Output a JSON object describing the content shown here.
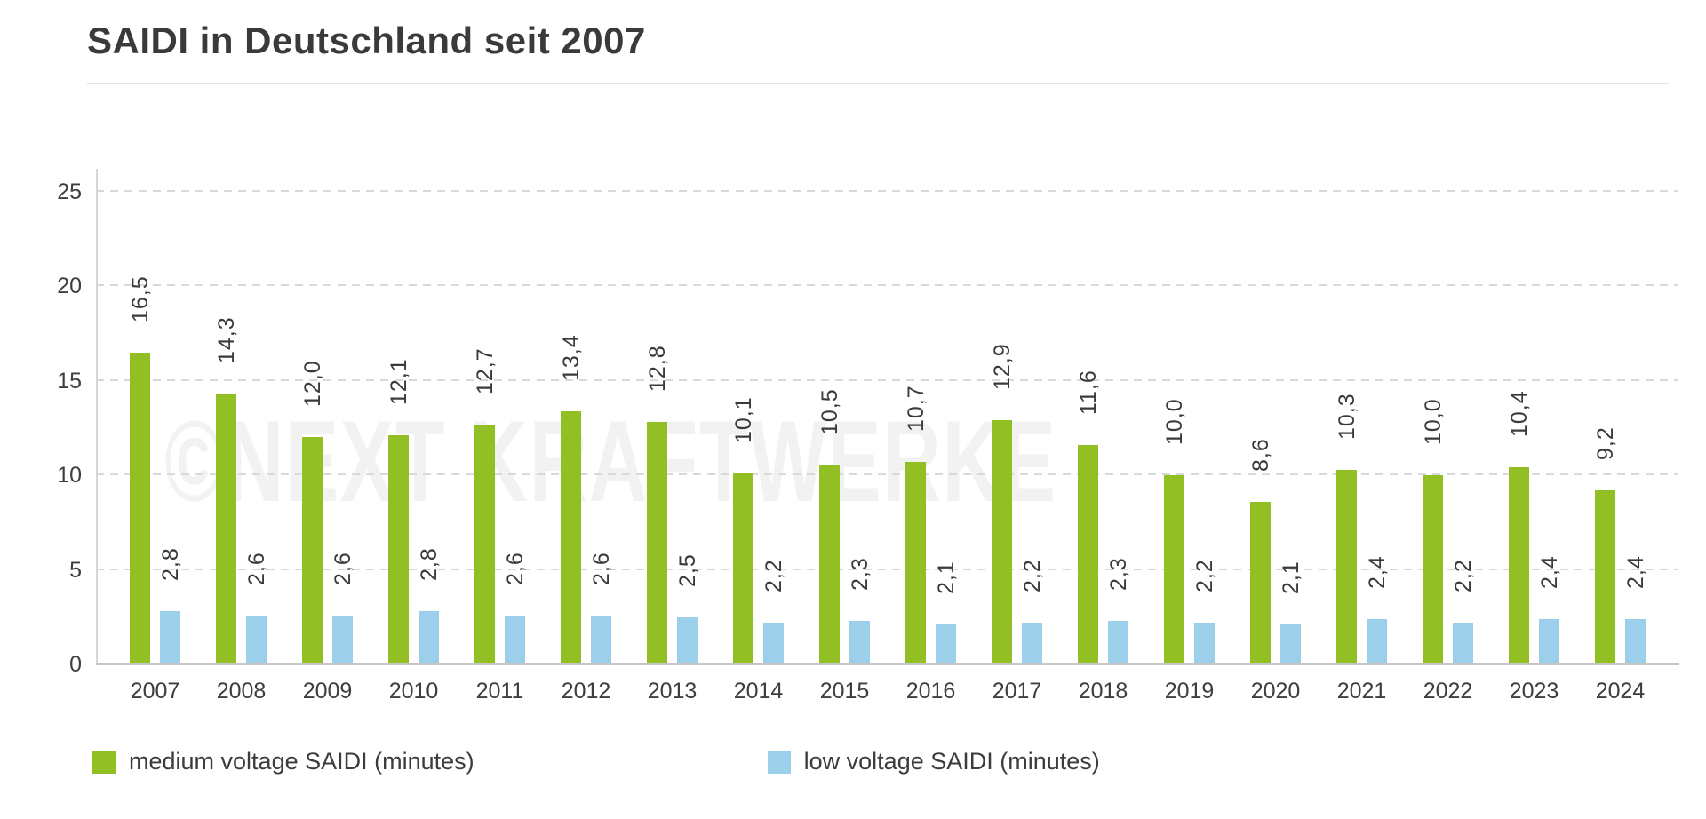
{
  "title": "SAIDI in Deutschland seit 2007",
  "watermark": "©NEXT KRAFTWERKE",
  "colors": {
    "medium_voltage_green": "#92bf23",
    "low_voltage_blue": "#9bcfea",
    "gridline": "#d9d9d9",
    "axis_line": "#c6c6c6",
    "text": "#3a3a3a",
    "watermark": "#f2f2f2"
  },
  "chart_data": {
    "type": "bar",
    "title": "SAIDI in Deutschland seit 2007",
    "categories": [
      "2007",
      "2008",
      "2009",
      "2010",
      "2011",
      "2012",
      "2013",
      "2014",
      "2015",
      "2016",
      "2017",
      "2018",
      "2019",
      "2020",
      "2021",
      "2022",
      "2023",
      "2024"
    ],
    "series": [
      {
        "name": "medium voltage SAIDI (minutes)",
        "color": "#92bf23",
        "values": [
          16.5,
          14.3,
          12.0,
          12.1,
          12.7,
          13.4,
          12.8,
          10.1,
          10.5,
          10.7,
          12.9,
          11.6,
          10.0,
          8.6,
          10.3,
          10.0,
          10.4,
          9.2
        ],
        "labels": [
          "16,5",
          "14,3",
          "12,0",
          "12,1",
          "12,7",
          "13,4",
          "12,8",
          "10,1",
          "10,5",
          "10,7",
          "12,9",
          "11,6",
          "10,0",
          "8,6",
          "10,3",
          "10,0",
          "10,4",
          "9,2"
        ]
      },
      {
        "name": "low voltage SAIDI (minutes)",
        "color": "#9bcfea",
        "values": [
          2.8,
          2.6,
          2.6,
          2.8,
          2.6,
          2.6,
          2.5,
          2.2,
          2.3,
          2.1,
          2.2,
          2.3,
          2.2,
          2.1,
          2.4,
          2.2,
          2.4,
          2.4
        ],
        "labels": [
          "2,8",
          "2,6",
          "2,6",
          "2,8",
          "2,6",
          "2,6",
          "2,5",
          "2,2",
          "2,3",
          "2,1",
          "2,2",
          "2,3",
          "2,2",
          "2,1",
          "2,4",
          "2,2",
          "2,4",
          "2,4"
        ]
      }
    ],
    "xlabel": "",
    "ylabel": "",
    "ylim": [
      0,
      25
    ],
    "yticks": [
      0,
      5,
      10,
      15,
      20,
      25
    ],
    "grid": "horizontal dashed",
    "value_labels": "rotated 90deg, comma decimal separator",
    "legend_position": "bottom-left"
  }
}
